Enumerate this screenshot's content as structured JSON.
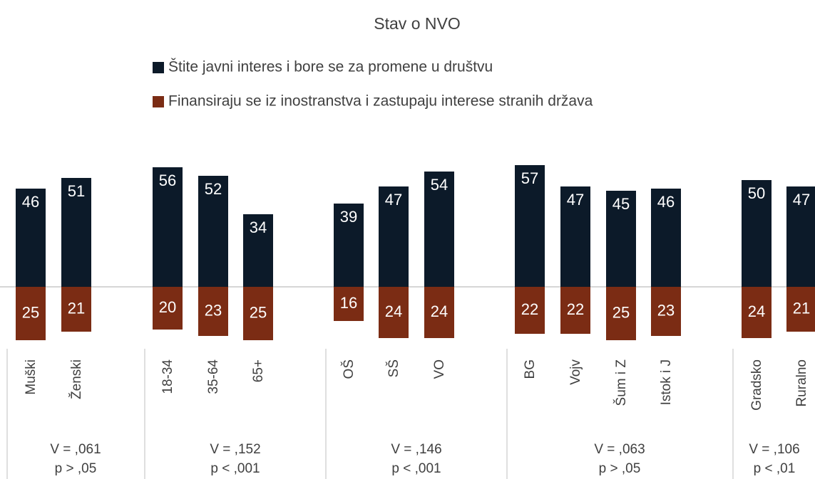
{
  "chart_data": {
    "type": "diverging-bar",
    "title": "Stav o NVO",
    "categories": [
      "Muški",
      "Ženski",
      "18-34",
      "35-64",
      "65+",
      "OŠ",
      "SŠ",
      "VO",
      "BG",
      "Vojv",
      "Šum i Z",
      "Istok i J",
      "Gradsko",
      "Ruralno"
    ],
    "series": [
      {
        "name": "Štite javni interes i bore se za promene u društvu",
        "color": "#0c1a29",
        "values": [
          46,
          51,
          56,
          52,
          34,
          39,
          47,
          54,
          57,
          47,
          45,
          46,
          50,
          47
        ]
      },
      {
        "name": "Finansiraju se iz inostranstva i zastupaju interese stranih država",
        "color": "#7b2c14",
        "values": [
          25,
          21,
          20,
          23,
          25,
          16,
          24,
          24,
          22,
          22,
          25,
          23,
          24,
          21
        ]
      }
    ],
    "groups": [
      {
        "v": "V = ,061",
        "p": "p > ,05"
      },
      {
        "v": "V = ,152",
        "p": "p < ,001"
      },
      {
        "v": "V = ,146",
        "p": "p < ,001"
      },
      {
        "v": "V = ,063",
        "p": "p >  ,05"
      },
      {
        "v": "V = ,106",
        "p": "p < ,01"
      }
    ]
  }
}
